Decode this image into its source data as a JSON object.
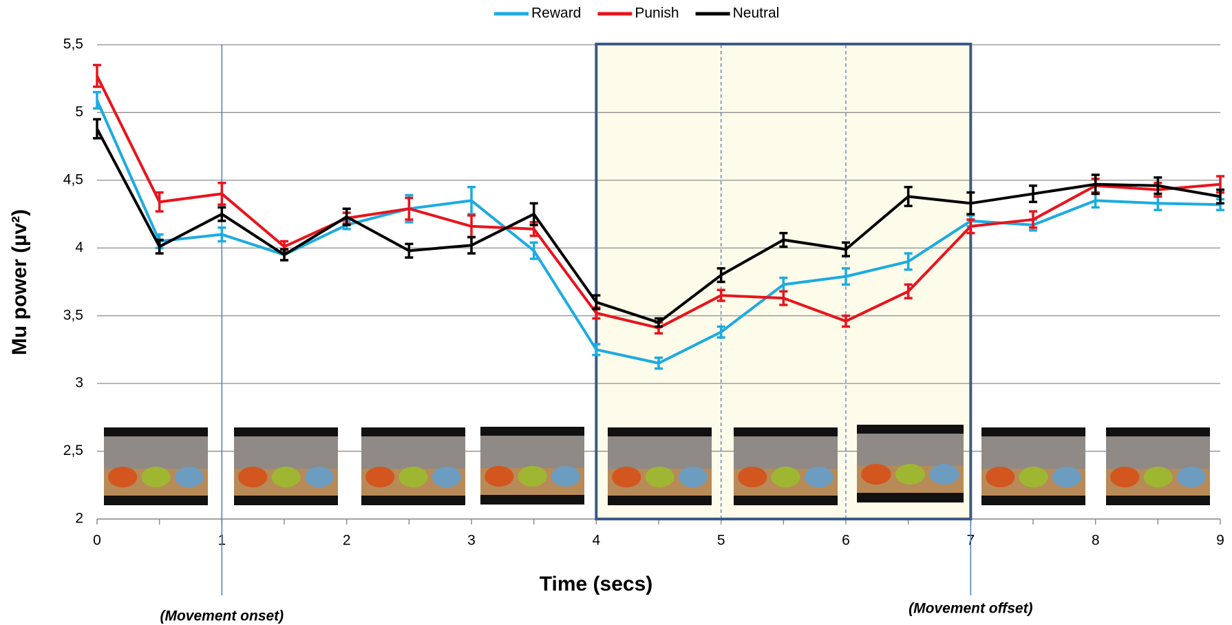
{
  "chart_data": {
    "type": "line",
    "x_label": "Time (secs)",
    "y_label": "Mu power (µv²)",
    "x": [
      0,
      0.5,
      1,
      1.5,
      2,
      2.5,
      3,
      3.5,
      4,
      4.5,
      5,
      5.5,
      6,
      6.5,
      7,
      7.5,
      8,
      8.5,
      9
    ],
    "series": [
      {
        "name": "Reward",
        "color": "#1cabe2",
        "values": [
          5.09,
          4.05,
          4.1,
          3.95,
          4.17,
          4.29,
          4.35,
          3.98,
          3.25,
          3.15,
          3.38,
          3.73,
          3.79,
          3.9,
          4.2,
          4.17,
          4.35,
          4.33,
          4.32
        ],
        "errors": [
          0.06,
          0.05,
          0.05,
          0.04,
          0.03,
          0.1,
          0.1,
          0.06,
          0.04,
          0.04,
          0.04,
          0.05,
          0.06,
          0.06,
          0.04,
          0.04,
          0.05,
          0.05,
          0.04
        ]
      },
      {
        "name": "Punish",
        "color": "#e8141c",
        "values": [
          5.27,
          4.34,
          4.4,
          4.01,
          4.22,
          4.29,
          4.16,
          4.14,
          3.52,
          3.41,
          3.65,
          3.63,
          3.46,
          3.68,
          4.16,
          4.21,
          4.46,
          4.43,
          4.47
        ],
        "errors": [
          0.08,
          0.07,
          0.08,
          0.04,
          0.04,
          0.08,
          0.08,
          0.05,
          0.04,
          0.04,
          0.04,
          0.05,
          0.04,
          0.05,
          0.05,
          0.06,
          0.05,
          0.05,
          0.06
        ]
      },
      {
        "name": "Neutral",
        "color": "#000000",
        "values": [
          4.88,
          4.01,
          4.25,
          3.95,
          4.23,
          3.98,
          4.02,
          4.25,
          3.6,
          3.45,
          3.8,
          4.06,
          3.99,
          4.38,
          4.33,
          4.4,
          4.47,
          4.46,
          4.38
        ],
        "errors": [
          0.07,
          0.05,
          0.05,
          0.04,
          0.06,
          0.05,
          0.06,
          0.08,
          0.05,
          0.03,
          0.05,
          0.05,
          0.05,
          0.07,
          0.08,
          0.06,
          0.07,
          0.06,
          0.05
        ]
      }
    ],
    "xlim": [
      0,
      9
    ],
    "xticks": [
      0,
      1,
      2,
      3,
      4,
      5,
      6,
      7,
      8,
      9
    ],
    "ylim": [
      2,
      5.5
    ],
    "yticks": [
      2,
      {
        "value": 2.5,
        "label": "2,5"
      },
      3,
      {
        "value": 3.5,
        "label": "3,5"
      },
      4,
      {
        "value": 4.5,
        "label": "4,5"
      },
      5,
      {
        "value": 5.5,
        "label": "5,5"
      }
    ],
    "grid": true,
    "legend": "top",
    "highlight_x": [
      4,
      7
    ],
    "vlines_solid": [
      1,
      7
    ],
    "vlines_dashed": [
      5,
      6
    ],
    "annotations": [
      {
        "text": "(Movement onset)",
        "x": 1
      },
      {
        "text": "(Movement offset)",
        "x": 7
      }
    ]
  }
}
